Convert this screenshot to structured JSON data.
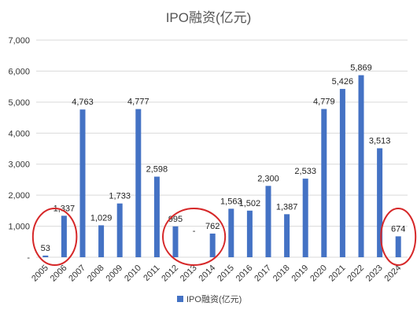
{
  "chart_data": {
    "type": "bar",
    "title": "IPO融资(亿元)",
    "categories": [
      "2005",
      "2006",
      "2007",
      "2008",
      "2009",
      "2010",
      "2011",
      "2012",
      "2013",
      "2014",
      "2015",
      "2016",
      "2017",
      "2018",
      "2019",
      "2020",
      "2021",
      "2022",
      "2023",
      "2024"
    ],
    "series": [
      {
        "name": "IPO融资(亿元)",
        "values": [
          53,
          1337,
          4763,
          1029,
          1733,
          4777,
          2598,
          995,
          0,
          762,
          1563,
          1502,
          2300,
          1387,
          2533,
          4779,
          5426,
          5869,
          3513,
          674
        ],
        "labels": [
          "53",
          "1,337",
          "4,763",
          "1,029",
          "1,733",
          "4,777",
          "2,598",
          "995",
          "-",
          "762",
          "1,563",
          "1,502",
          "2,300",
          "1,387",
          "2,533",
          "4,779",
          "5,426",
          "5,869",
          "3,513",
          "674"
        ]
      }
    ],
    "y_ticks": [
      "-",
      "1,000",
      "2,000",
      "3,000",
      "4,000",
      "5,000",
      "6,000",
      "7,000"
    ],
    "ylim": [
      0,
      7000
    ],
    "grid": true,
    "legend_position": "bottom",
    "highlighted_categories": [
      "2005",
      "2006",
      "2012",
      "2013",
      "2014",
      "2024"
    ],
    "colors": {
      "bar": "#4472C4",
      "grid": "#D9D9D9",
      "highlight": "#D62728"
    }
  }
}
